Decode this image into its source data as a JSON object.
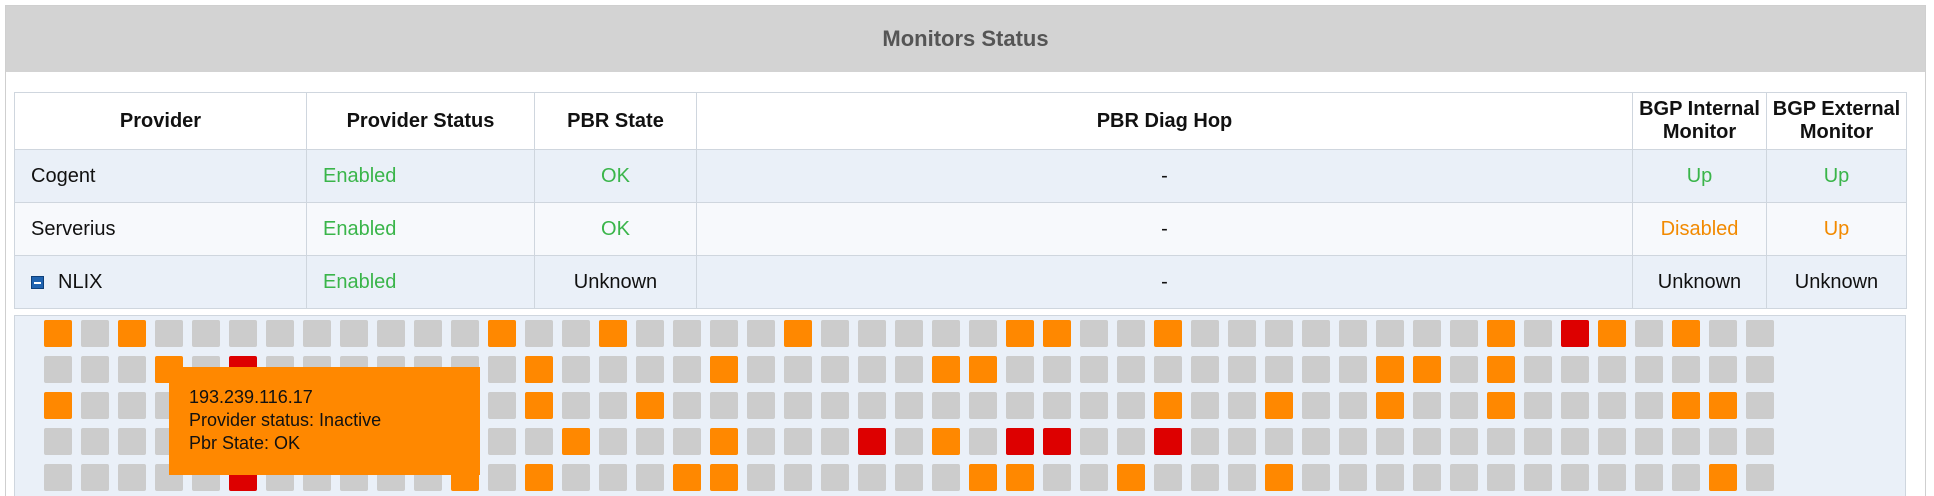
{
  "panel": {
    "title": "Monitors Status"
  },
  "table": {
    "headers": {
      "provider": "Provider",
      "provider_status": "Provider Status",
      "pbr_state": "PBR State",
      "pbr_diag_hop": "PBR Diag Hop",
      "bgp_internal_line1": "BGP Internal",
      "bgp_internal_line2": "Monitor",
      "bgp_external_line1": "BGP External",
      "bgp_external_line2": "Monitor"
    },
    "rows": [
      {
        "provider": "Cogent",
        "provider_status": "Enabled",
        "pbr_state": "OK",
        "pbr_diag_hop": "-",
        "bgp_internal": "Up",
        "bgp_external": "Up"
      },
      {
        "provider": "Serverius",
        "provider_status": "Enabled",
        "pbr_state": "OK",
        "pbr_diag_hop": "-",
        "bgp_internal": "Disabled",
        "bgp_external": "Up"
      },
      {
        "provider": "NLIX",
        "provider_status": "Enabled",
        "pbr_state": "Unknown",
        "pbr_diag_hop": "-",
        "bgp_internal": "Unknown",
        "bgp_external": "Unknown"
      }
    ]
  },
  "colors": {
    "inactive": "#cccccc",
    "warning": "#ff8800",
    "error": "#dd0000",
    "ok_text": "#3ab54a",
    "warn_text": "#f28a00"
  },
  "monitor_grid": {
    "legend": "0 = gray, 1 = orange, 2 = red",
    "rows": [
      "10100000000010010000100000110010000000010210100",
      "00010200000001000010000011000000000011010000000",
      "10000000000001001000000000000010010010010000110",
      "00000000000000100010004010220020000000000000000",
      "00000200000101000110000001100100010000000000010"
    ]
  },
  "tooltip": {
    "ip": "193.239.116.17",
    "provider_status": "Provider status: Inactive",
    "pbr_state": "Pbr State: OK"
  }
}
